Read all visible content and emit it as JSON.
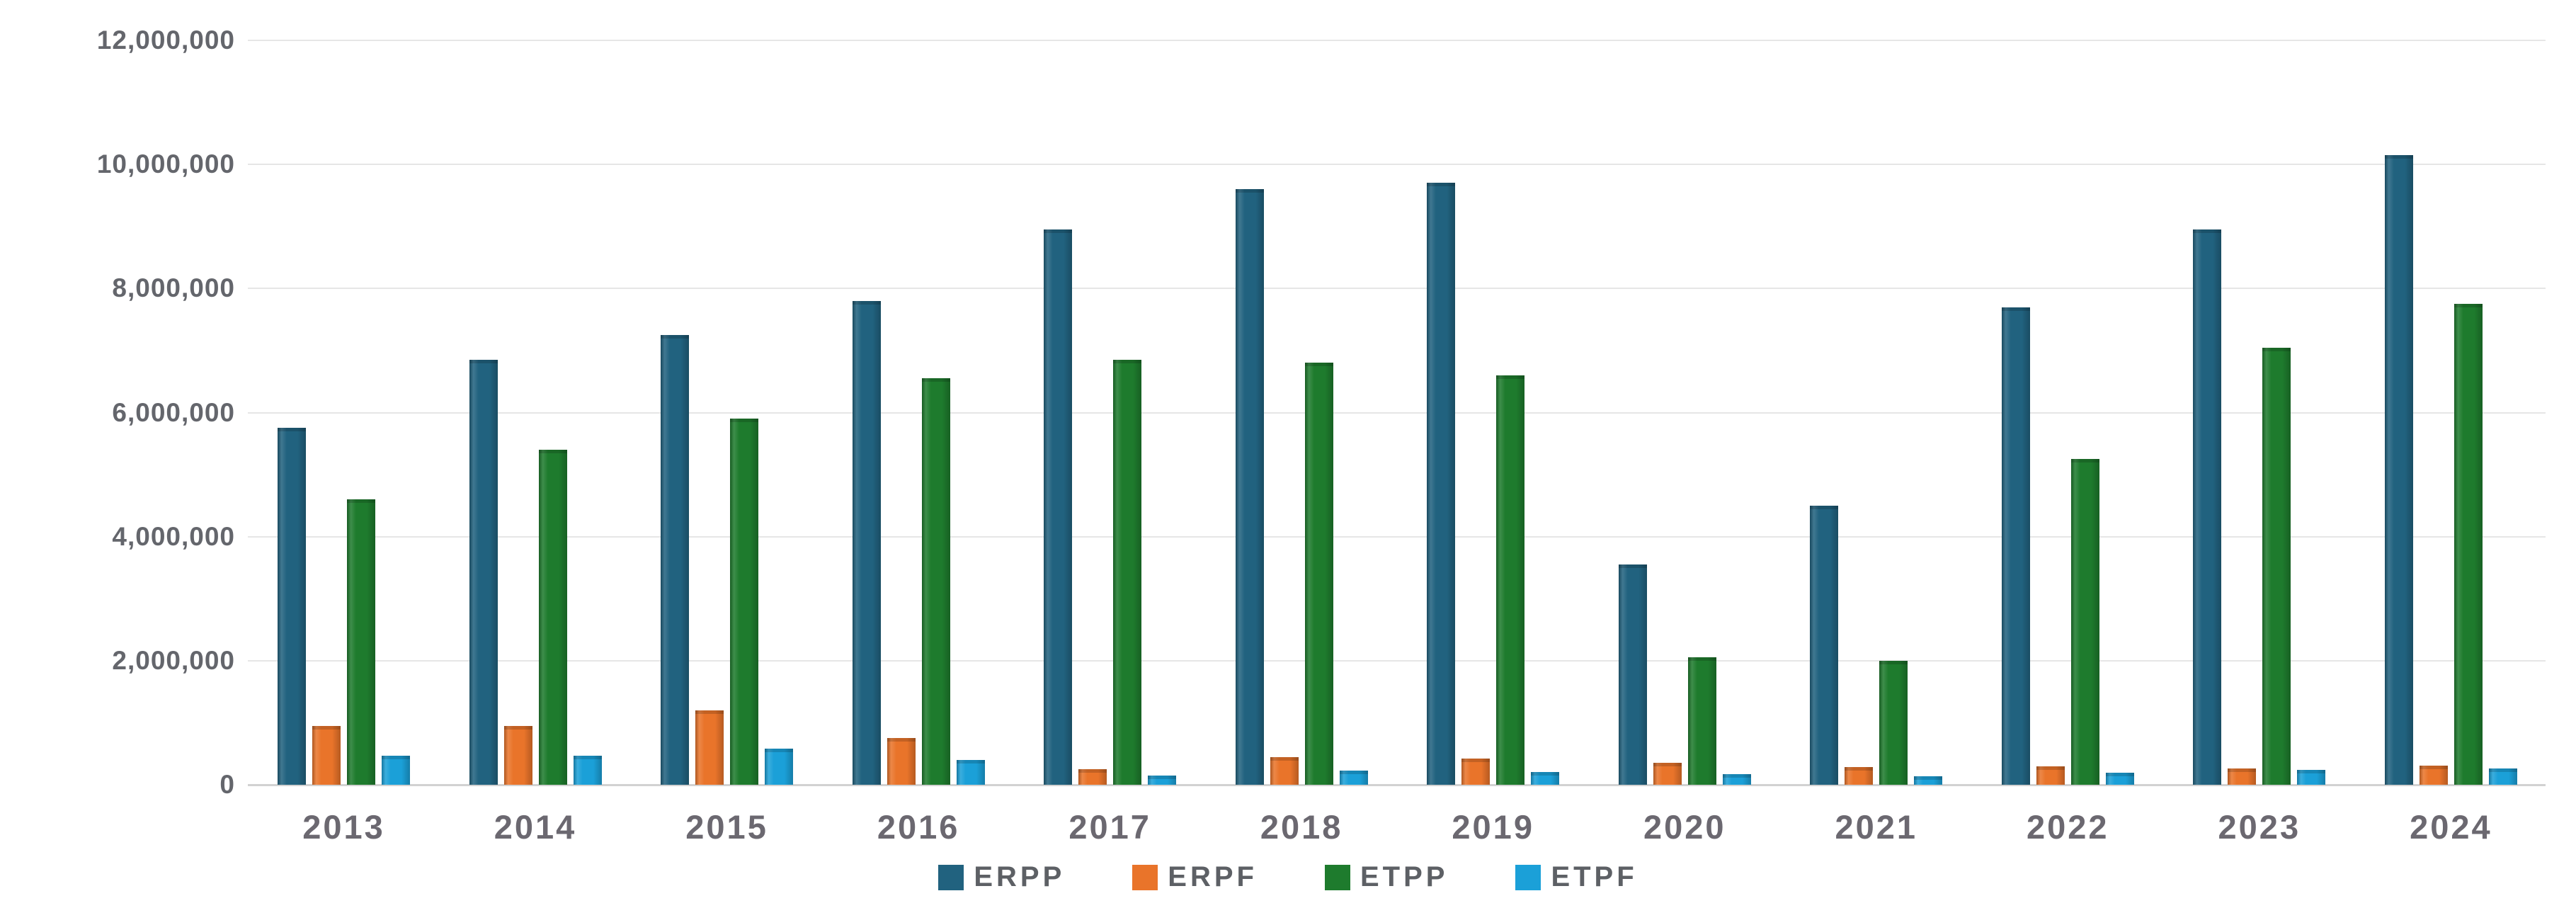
{
  "chart_data": {
    "type": "bar",
    "title": "",
    "xlabel": "",
    "ylabel": "",
    "ylim": [
      0,
      12000000
    ],
    "grid": "horizontal",
    "legend_position": "bottom-center",
    "y_tick_step": 2000000,
    "y_ticks": [
      "0",
      "2,000,000",
      "4,000,000",
      "6,000,000",
      "8,000,000",
      "10,000,000",
      "12,000,000"
    ],
    "categories": [
      "2013",
      "2014",
      "2015",
      "2016",
      "2017",
      "2018",
      "2019",
      "2020",
      "2021",
      "2022",
      "2023",
      "2024"
    ],
    "series": [
      {
        "name": "ERPP",
        "color": "#21627f",
        "values": [
          5750000,
          6850000,
          7250000,
          7800000,
          8950000,
          9600000,
          9700000,
          3550000,
          4500000,
          7700000,
          8950000,
          10150000
        ]
      },
      {
        "name": "ERPF",
        "color": "#e9742a",
        "values": [
          950000,
          950000,
          1200000,
          750000,
          250000,
          450000,
          420000,
          350000,
          280000,
          300000,
          260000,
          310000
        ]
      },
      {
        "name": "ETPP",
        "color": "#1e7b2d",
        "values": [
          4600000,
          5400000,
          5900000,
          6550000,
          6850000,
          6800000,
          6600000,
          2050000,
          2000000,
          5250000,
          7050000,
          7750000
        ]
      },
      {
        "name": "ETPF",
        "color": "#1ba0d8",
        "values": [
          470000,
          470000,
          580000,
          400000,
          150000,
          230000,
          200000,
          170000,
          140000,
          190000,
          240000,
          260000
        ]
      }
    ]
  }
}
